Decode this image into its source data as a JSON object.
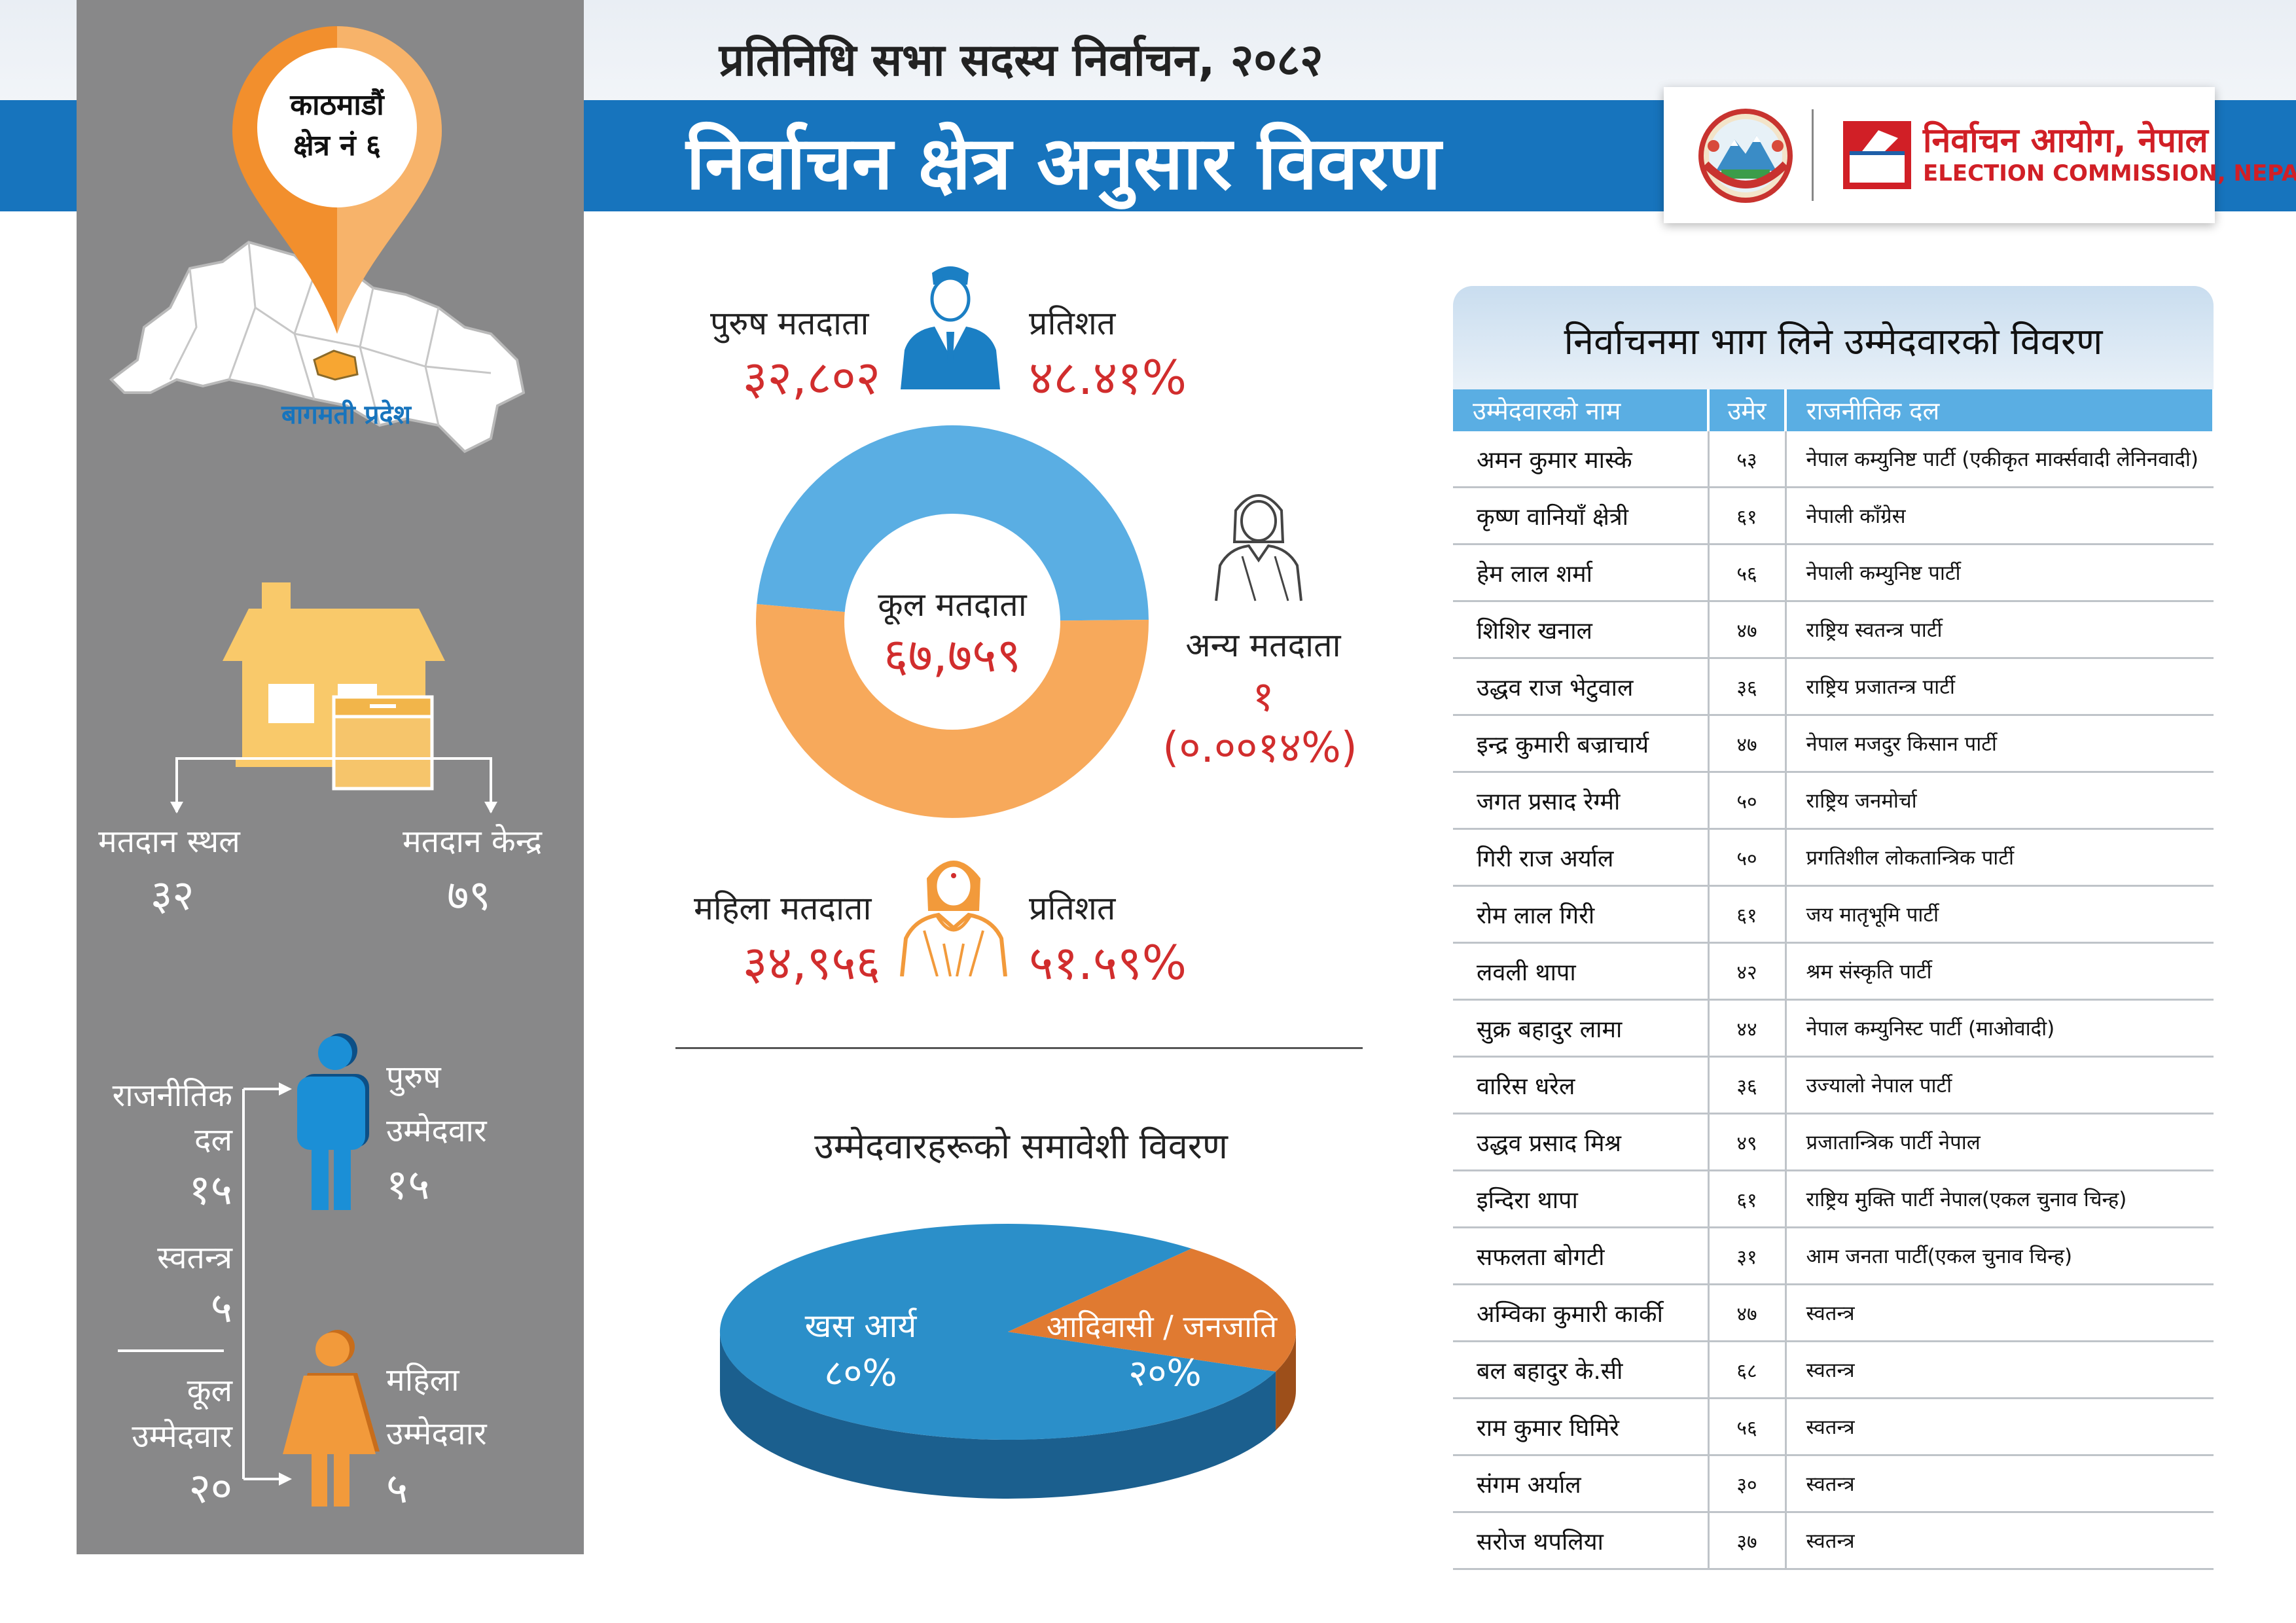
{
  "header": {
    "subtitle": "प्रतिनिधि सभा सदस्य निर्वाचन, २०८२",
    "title": "निर्वाचन क्षेत्र अनुसार विवरण",
    "commission_nepali": "निर्वाचन आयोग, नेपाल",
    "commission_english": "ELECTION COMMISSION, NEPAL"
  },
  "constituency": {
    "district": "काठमाडौं",
    "area": "क्षेत्र नं ६",
    "province": "बागमती प्रदेश"
  },
  "polling": {
    "place_label": "मतदान स्थल",
    "place_value": "३२",
    "center_label": "मतदान केन्द्र",
    "center_value": "७९"
  },
  "candidates_summary": {
    "parties_label": "राजनीतिक दल",
    "parties_value": "१५",
    "independent_label": "स्वतन्त्र",
    "independent_value": "५",
    "total_label": "कूल उम्मेदवार",
    "total_value": "२०",
    "male_label": "पुरुष उम्मेदवार",
    "male_value": "१५",
    "female_label": "महिला उम्मेदवार",
    "female_value": "५"
  },
  "voters": {
    "male_label": "पुरुष मतदाता",
    "male_value": "३२,८०२",
    "male_pct_label": "प्रतिशत",
    "male_pct_value": "४८.४१%",
    "female_label": "महिला मतदाता",
    "female_value": "३४,९५६",
    "female_pct_label": "प्रतिशत",
    "female_pct_value": "५१.५९%",
    "other_label": "अन्य मतदाता",
    "other_value": "१",
    "other_pct_value": "(०.००१४%)",
    "total_label": "कूल मतदाता",
    "total_value": "६७,७५९"
  },
  "inclusion": {
    "title": "उम्मेदवारहरूको समावेशी विवरण",
    "khas_label": "खस आर्य",
    "khas_value": "८०%",
    "adivasi_label": "आदिवासी / जनजाति",
    "adivasi_value": "२०%"
  },
  "chart_data": [
    {
      "type": "pie",
      "categories": [
        "पुरुष मतदाता",
        "महिला मतदाता",
        "अन्य मतदाता"
      ],
      "values": [
        48.41,
        51.59,
        0.0014
      ],
      "colors": [
        "#5aaee3",
        "#f7a95b",
        "#888888"
      ]
    },
    {
      "type": "pie",
      "title": "उम्मेदवारहरूको समावेशी विवरण",
      "categories": [
        "खस आर्य",
        "आदिवासी / जनजाति"
      ],
      "values": [
        80,
        20
      ],
      "colors": [
        "#2b8fc9",
        "#e07a31"
      ]
    }
  ],
  "table": {
    "title": "निर्वाचनमा भाग लिने उम्मेदवारको विवरण",
    "headers": [
      "उम्मेदवारको नाम",
      "उमेर",
      "राजनीतिक दल"
    ],
    "rows": [
      [
        "अमन कुमार मास्के",
        "५३",
        "नेपाल कम्युनिष्ट पार्टी (एकीकृत मार्क्सवादी लेनिनवादी)"
      ],
      [
        "कृष्ण वानियाँ क्षेत्री",
        "६१",
        "नेपाली काँग्रेस"
      ],
      [
        "हेम लाल शर्मा",
        "५६",
        "नेपाली कम्युनिष्ट पार्टी"
      ],
      [
        "शिशिर खनाल",
        "४७",
        "राष्ट्रिय स्वतन्त्र पार्टी"
      ],
      [
        "उद्धव राज भेटुवाल",
        "३६",
        "राष्ट्रिय प्रजातन्त्र पार्टी"
      ],
      [
        "इन्द्र कुमारी बज्राचार्य",
        "४७",
        "नेपाल मजदुर किसान पार्टी"
      ],
      [
        "जगत प्रसाद रेग्मी",
        "५०",
        "राष्ट्रिय जनमोर्चा"
      ],
      [
        "गिरी राज अर्याल",
        "५०",
        "प्रगतिशील लोकतान्त्रिक पार्टी"
      ],
      [
        "रोम लाल गिरी",
        "६१",
        "जय मातृभूमि पार्टी"
      ],
      [
        "लवली थापा",
        "४२",
        "श्रम संस्कृति पार्टी"
      ],
      [
        "सुक्र बहादुर लामा",
        "४४",
        "नेपाल कम्युनिस्ट पार्टी (माओवादी)"
      ],
      [
        "वारिस धरेल",
        "३६",
        "उज्यालो नेपाल पार्टी"
      ],
      [
        "उद्धव प्रसाद मिश्र",
        "४९",
        "प्रजातान्त्रिक पार्टी नेपाल"
      ],
      [
        "इन्दिरा थापा",
        "६१",
        "राष्ट्रिय मुक्ति पार्टी नेपाल(एकल चुनाव चिन्ह)"
      ],
      [
        "सफलता बोगटी",
        "३१",
        "आम जनता पार्टी(एकल चुनाव चिन्ह)"
      ],
      [
        "अम्विका कुमारी कार्की",
        "४७",
        "स्वतन्त्र"
      ],
      [
        "बल बहादुर के.सी",
        "६८",
        "स्वतन्त्र"
      ],
      [
        "राम कुमार घिमिरे",
        "५६",
        "स्वतन्त्र"
      ],
      [
        "संगम अर्याल",
        "३०",
        "स्वतन्त्र"
      ],
      [
        "सरोज थपलिया",
        "३७",
        "स्वतन्त्र"
      ]
    ]
  },
  "icons": {
    "emblem": "nepal-emblem-icon",
    "commission_logo": "ballot-box-logo-icon",
    "map": "nepal-map-icon",
    "pin": "location-pin-icon",
    "booth": "polling-booth-icon",
    "male_voter": "male-voter-icon",
    "female_voter": "female-voter-icon",
    "other_voter": "other-voter-icon",
    "male_candidate": "male-figure-icon",
    "female_candidate": "female-figure-icon"
  }
}
